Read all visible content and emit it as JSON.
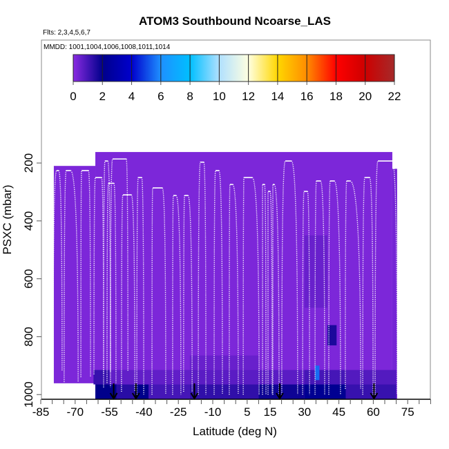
{
  "chart_data": {
    "type": "heatmap",
    "title": "ATOM3 Southbound Ncoarse_LAS",
    "subtitle_flights": "Flts: 2,3,4,5,6,7",
    "subtitle_dates": "MMDD: 1001,1004,1006,1008,1011,1014",
    "xlabel": "Latitude (deg N)",
    "ylabel": "PSXC (mbar)",
    "xlim": [
      -85,
      85
    ],
    "ylim": [
      1017,
      -225
    ],
    "x_tick_labels": [
      "-85",
      "-70",
      "-55",
      "-40",
      "-25",
      "-10",
      "5",
      "15",
      "30",
      "45",
      "60",
      "75"
    ],
    "x_tick_values": [
      -85,
      -70,
      -55,
      -40,
      -25,
      -10,
      5,
      15,
      30,
      45,
      60,
      75
    ],
    "y_tick_labels": [
      "200",
      "400",
      "600",
      "800",
      "1000"
    ],
    "y_tick_values": [
      200,
      400,
      600,
      800,
      1000
    ],
    "colorbar": {
      "range": [
        0,
        22
      ],
      "tick_labels": [
        "0",
        "2",
        "4",
        "6",
        "8",
        "10",
        "12",
        "14",
        "16",
        "18",
        "20",
        "22"
      ],
      "stops": [
        {
          "v": 0,
          "color": "#8a2be2"
        },
        {
          "v": 2,
          "color": "#00008b"
        },
        {
          "v": 4,
          "color": "#0000cd"
        },
        {
          "v": 6,
          "color": "#1e90ff"
        },
        {
          "v": 8,
          "color": "#00bfff"
        },
        {
          "v": 10,
          "color": "#b0e0ff"
        },
        {
          "v": 12,
          "color": "#ffffe0"
        },
        {
          "v": 14,
          "color": "#ffd700"
        },
        {
          "v": 16,
          "color": "#ff8c00"
        },
        {
          "v": 18,
          "color": "#ff0000"
        },
        {
          "v": 20,
          "color": "#cd0000"
        },
        {
          "v": 22,
          "color": "#a52a2a"
        }
      ]
    },
    "curtain_blocks": [
      {
        "lat": [
          -79.3,
          -61.2
        ],
        "p": [
          210,
          961
        ],
        "value": 0.2
      },
      {
        "lat": [
          -61.2,
          68.3
        ],
        "p": [
          162,
          1015
        ],
        "value": 0.2
      },
      {
        "lat": [
          68.3,
          70.4
        ],
        "p": [
          220,
          1015
        ],
        "value": 0.3
      }
    ],
    "curtain_cells": [
      {
        "lat": [
          -61.2,
          -52
        ],
        "p": [
          965,
          1015
        ],
        "value": 2.0
      },
      {
        "lat": [
          -52,
          -44
        ],
        "p": [
          965,
          1015
        ],
        "value": 1.4
      },
      {
        "lat": [
          -44,
          -38
        ],
        "p": [
          965,
          1015
        ],
        "value": 2.0
      },
      {
        "lat": [
          -38,
          -20
        ],
        "p": [
          965,
          1015
        ],
        "value": 1.0
      },
      {
        "lat": [
          -20,
          10
        ],
        "p": [
          965,
          1015
        ],
        "value": 1.3
      },
      {
        "lat": [
          10,
          30
        ],
        "p": [
          965,
          1015
        ],
        "value": 1.8
      },
      {
        "lat": [
          30,
          48
        ],
        "p": [
          965,
          1015
        ],
        "value": 2.2
      },
      {
        "lat": [
          48,
          70
        ],
        "p": [
          965,
          1015
        ],
        "value": 1.2
      },
      {
        "lat": [
          -62,
          -55
        ],
        "p": [
          915,
          965
        ],
        "value": 1.2
      },
      {
        "lat": [
          -55,
          -20
        ],
        "p": [
          915,
          965
        ],
        "value": 0.6
      },
      {
        "lat": [
          -20,
          30
        ],
        "p": [
          915,
          965
        ],
        "value": 0.7
      },
      {
        "lat": [
          30,
          48
        ],
        "p": [
          915,
          965
        ],
        "value": 1.0
      },
      {
        "lat": [
          48,
          70
        ],
        "p": [
          915,
          965
        ],
        "value": 0.8
      },
      {
        "lat": [
          -20,
          10
        ],
        "p": [
          865,
          915
        ],
        "value": 0.5
      },
      {
        "lat": [
          34.6,
          36.5
        ],
        "p": [
          900,
          950
        ],
        "value": 5.5
      },
      {
        "lat": [
          40,
          44
        ],
        "p": [
          760,
          830
        ],
        "value": 1.6
      },
      {
        "lat": [
          30,
          40
        ],
        "p": [
          450,
          700
        ],
        "value": 0.5
      }
    ],
    "flight_profiles": [
      {
        "lat": [
          -79.6,
          -78.1,
          -77.2,
          -75.7
        ],
        "p_top": 226,
        "p_bottom": 918
      },
      {
        "lat": [
          -74.8,
          -73.9,
          -72.0,
          -68.7
        ],
        "p_top": 226,
        "p_bottom": 957
      },
      {
        "lat": [
          -67.5,
          -67.2,
          -64.2,
          -63.3
        ],
        "p_top": 226,
        "p_bottom": 940
      },
      {
        "lat": [
          -61.8,
          -61.2,
          -58.5,
          -57.6
        ],
        "p_top": 250,
        "p_bottom": 930
      },
      {
        "lat": [
          -57.6,
          -57.0,
          -55.8,
          -54.6
        ],
        "p_top": 193,
        "p_bottom": 975
      },
      {
        "lat": [
          -56.1,
          -55.5,
          -53.1,
          -52.2
        ],
        "p_top": 270,
        "p_bottom": 960
      },
      {
        "lat": [
          -54.6,
          -53.7,
          -47.7,
          -47.0
        ],
        "p_top": 186,
        "p_bottom": 920
      },
      {
        "lat": [
          -49.8,
          -49.2,
          -45.5,
          -44.0
        ],
        "p_top": 310,
        "p_bottom": 990
      },
      {
        "lat": [
          -43.1,
          -42.5,
          -41.0,
          -40.1
        ],
        "p_top": 250,
        "p_bottom": 1000
      },
      {
        "lat": [
          -36.5,
          -36.2,
          -32.0,
          -30.5
        ],
        "p_top": 286,
        "p_bottom": 1000
      },
      {
        "lat": [
          -27.5,
          -27.2,
          -26.0,
          -23.9
        ],
        "p_top": 312,
        "p_bottom": 1000
      },
      {
        "lat": [
          -22.7,
          -22.3,
          -20.8,
          -19.0
        ],
        "p_top": 312,
        "p_bottom": 990
      },
      {
        "lat": [
          -16.3,
          -15.4,
          -13.9,
          -13.0
        ],
        "p_top": 197,
        "p_bottom": 1000
      },
      {
        "lat": [
          -9.4,
          -8.8,
          -7.3,
          -5.8
        ],
        "p_top": 226,
        "p_bottom": 1000
      },
      {
        "lat": [
          -2.8,
          -2.5,
          -1.3,
          1.1
        ],
        "p_top": 274,
        "p_bottom": 1000
      },
      {
        "lat": [
          3.3,
          3.6,
          7.2,
          10.2
        ],
        "p_top": 250,
        "p_bottom": 1000
      },
      {
        "lat": [
          11.7,
          11.7,
          12.6,
          13.2
        ],
        "p_top": 274,
        "p_bottom": 1000
      },
      {
        "lat": [
          14.1,
          14.1,
          15.0,
          15.9
        ],
        "p_top": 298,
        "p_bottom": 1000
      },
      {
        "lat": [
          16.2,
          16.2,
          16.8,
          18.9
        ],
        "p_top": 274,
        "p_bottom": 1000
      },
      {
        "lat": [
          20.1,
          21.6,
          24.3,
          27.0
        ],
        "p_top": 193,
        "p_bottom": 1000
      },
      {
        "lat": [
          29.2,
          29.8,
          31.3,
          32.2
        ],
        "p_top": 298,
        "p_bottom": 1000
      },
      {
        "lat": [
          34.6,
          35.2,
          37.0,
          38.8
        ],
        "p_top": 262,
        "p_bottom": 1000
      },
      {
        "lat": [
          40.6,
          41.2,
          43.0,
          45.7
        ],
        "p_top": 262,
        "p_bottom": 1000
      },
      {
        "lat": [
          47.8,
          48.4,
          49.9,
          54.5
        ],
        "p_top": 262,
        "p_bottom": 980
      },
      {
        "lat": [
          55.4,
          56.3,
          58.4,
          59.9
        ],
        "p_top": 250,
        "p_bottom": 1000
      },
      {
        "lat": [
          60.8,
          62.0,
          68.3,
          70.4
        ],
        "p_top": 193,
        "p_bottom": 1000
      }
    ],
    "arrows_lat": [
      -53.2,
      -43.5,
      -18.0,
      19.2,
      60.3
    ]
  }
}
